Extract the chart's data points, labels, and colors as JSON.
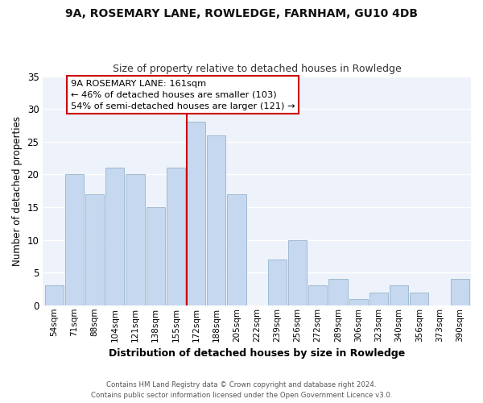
{
  "title": "9A, ROSEMARY LANE, ROWLEDGE, FARNHAM, GU10 4DB",
  "subtitle": "Size of property relative to detached houses in Rowledge",
  "xlabel": "Distribution of detached houses by size in Rowledge",
  "ylabel": "Number of detached properties",
  "bar_labels": [
    "54sqm",
    "71sqm",
    "88sqm",
    "104sqm",
    "121sqm",
    "138sqm",
    "155sqm",
    "172sqm",
    "188sqm",
    "205sqm",
    "222sqm",
    "239sqm",
    "256sqm",
    "272sqm",
    "289sqm",
    "306sqm",
    "323sqm",
    "340sqm",
    "356sqm",
    "373sqm",
    "390sqm"
  ],
  "bar_heights": [
    3,
    20,
    17,
    21,
    20,
    15,
    21,
    28,
    26,
    17,
    0,
    7,
    10,
    3,
    4,
    1,
    2,
    3,
    2,
    0,
    4
  ],
  "bar_color": "#c5d8f0",
  "bar_edge_color": "#a0bbd0",
  "vline_color": "#cc0000",
  "ylim": [
    0,
    35
  ],
  "yticks": [
    0,
    5,
    10,
    15,
    20,
    25,
    30,
    35
  ],
  "annotation_title": "9A ROSEMARY LANE: 161sqm",
  "annotation_line1": "← 46% of detached houses are smaller (103)",
  "annotation_line2": "54% of semi-detached houses are larger (121) →",
  "footer1": "Contains HM Land Registry data © Crown copyright and database right 2024.",
  "footer2": "Contains public sector information licensed under the Open Government Licence v3.0.",
  "background_color": "#ffffff",
  "plot_background": "#eef2fa"
}
